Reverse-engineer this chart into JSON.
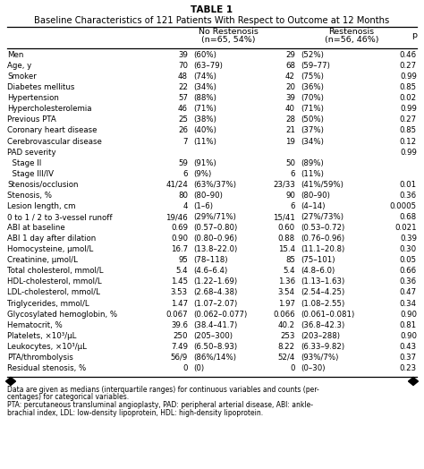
{
  "title_line1": "TABLE 1",
  "title_line2": "Baseline Characteristics of 121 Patients With Respect to Outcome at 12 Months",
  "col_headers_nr1": "No Restenosis",
  "col_headers_nr2": "(n=65, 54%)",
  "col_headers_r1": "Restenosis",
  "col_headers_r2": "(n=56, 46%)",
  "col_headers_p": "p",
  "rows": [
    [
      "Men",
      "39",
      "(60%)",
      "29",
      "(52%)",
      "0.46"
    ],
    [
      "Age, y",
      "70",
      "(63–79)",
      "68",
      "(59–77)",
      "0.27"
    ],
    [
      "Smoker",
      "48",
      "(74%)",
      "42",
      "(75%)",
      "0.99"
    ],
    [
      "Diabetes mellitus",
      "22",
      "(34%)",
      "20",
      "(36%)",
      "0.85"
    ],
    [
      "Hypertension",
      "57",
      "(88%)",
      "39",
      "(70%)",
      "0.02"
    ],
    [
      "Hypercholesterolemia",
      "46",
      "(71%)",
      "40",
      "(71%)",
      "0.99"
    ],
    [
      "Previous PTA",
      "25",
      "(38%)",
      "28",
      "(50%)",
      "0.27"
    ],
    [
      "Coronary heart disease",
      "26",
      "(40%)",
      "21",
      "(37%)",
      "0.85"
    ],
    [
      "Cerebrovascular disease",
      "7",
      "(11%)",
      "19",
      "(34%)",
      "0.12"
    ],
    [
      "PAD severity",
      "",
      "",
      "",
      "",
      "0.99"
    ],
    [
      "  Stage II",
      "59",
      "(91%)",
      "50",
      "(89%)",
      ""
    ],
    [
      "  Stage III/IV",
      "6",
      "(9%)",
      "6",
      "(11%)",
      ""
    ],
    [
      "Stenosis/occlusion",
      "41/24",
      "(63%/37%)",
      "23/33",
      "(41%/59%)",
      "0.01"
    ],
    [
      "Stenosis, %",
      "80",
      "(80–90)",
      "90",
      "(80–90)",
      "0.36"
    ],
    [
      "Lesion length, cm",
      "4",
      "(1–6)",
      "6",
      "(4–14)",
      "0.0005"
    ],
    [
      "0 to 1 / 2 to 3-vessel runoff",
      "19/46",
      "(29%/71%)",
      "15/41",
      "(27%/73%)",
      "0.68"
    ],
    [
      "ABI at baseline",
      "0.69",
      "(0.57–0.80)",
      "0.60",
      "(0.53–0.72)",
      "0.021"
    ],
    [
      "ABI 1 day after dilation",
      "0.90",
      "(0.80–0.96)",
      "0.88",
      "(0.76–0.96)",
      "0.39"
    ],
    [
      "Homocysteine, μmol/L",
      "16.7",
      "(13.8–22.0)",
      "15.4",
      "(11.1–20.8)",
      "0.30"
    ],
    [
      "Creatinine, μmol/L",
      "95",
      "(78–118)",
      "85",
      "(75–101)",
      "0.05"
    ],
    [
      "Total cholesterol, mmol/L",
      "5.4",
      "(4.6–6.4)",
      "5.4",
      "(4.8–6.0)",
      "0.66"
    ],
    [
      "HDL-cholesterol, mmol/L",
      "1.45",
      "(1.22–1.69)",
      "1.36",
      "(1.13–1.63)",
      "0.36"
    ],
    [
      "LDL-cholesterol, mmol/L",
      "3.53",
      "(2.68–4.38)",
      "3.54",
      "(2.54–4.25)",
      "0.47"
    ],
    [
      "Triglycerides, mmol/L",
      "1.47",
      "(1.07–2.07)",
      "1.97",
      "(1.08–2.55)",
      "0.34"
    ],
    [
      "Glycosylated hemoglobin, %",
      "0.067",
      "(0.062–0.077)",
      "0.066",
      "(0.061–0.081)",
      "0.90"
    ],
    [
      "Hematocrit, %",
      "39.6",
      "(38.4–41.7)",
      "40.2",
      "(36.8–42.3)",
      "0.81"
    ],
    [
      "Platelets, ×10³/μL",
      "250",
      "(205–300)",
      "253",
      "(203–288)",
      "0.90"
    ],
    [
      "Leukocytes, ×10³/μL",
      "7.49",
      "(6.50–8.93)",
      "8.22",
      "(6.33–9.82)",
      "0.43"
    ],
    [
      "PTA/thrombolysis",
      "56/9",
      "(86%/14%)",
      "52/4",
      "(93%/7%)",
      "0.37"
    ],
    [
      "Residual stenosis, %",
      "0",
      "(0)",
      "0",
      "(0–30)",
      "0.23"
    ]
  ],
  "footnote_lines": [
    "Data are given as medians (interquartile ranges) for continuous variables and counts (per-",
    "centages) for categorical variables.",
    "PTA: percutaneous transluminal angioplasty, PAD: peripheral arterial disease, ABI: ankle-",
    "brachial index, LDL: low-density lipoprotein, HDL: high-density lipoprotein."
  ],
  "bg_color": "#ffffff",
  "text_color": "#000000",
  "line_color": "#000000",
  "diamond_color": "#000000",
  "title1_fontsize": 7.5,
  "title2_fontsize": 7.2,
  "header_fontsize": 6.8,
  "row_fontsize": 6.2,
  "footnote_fontsize": 5.5
}
